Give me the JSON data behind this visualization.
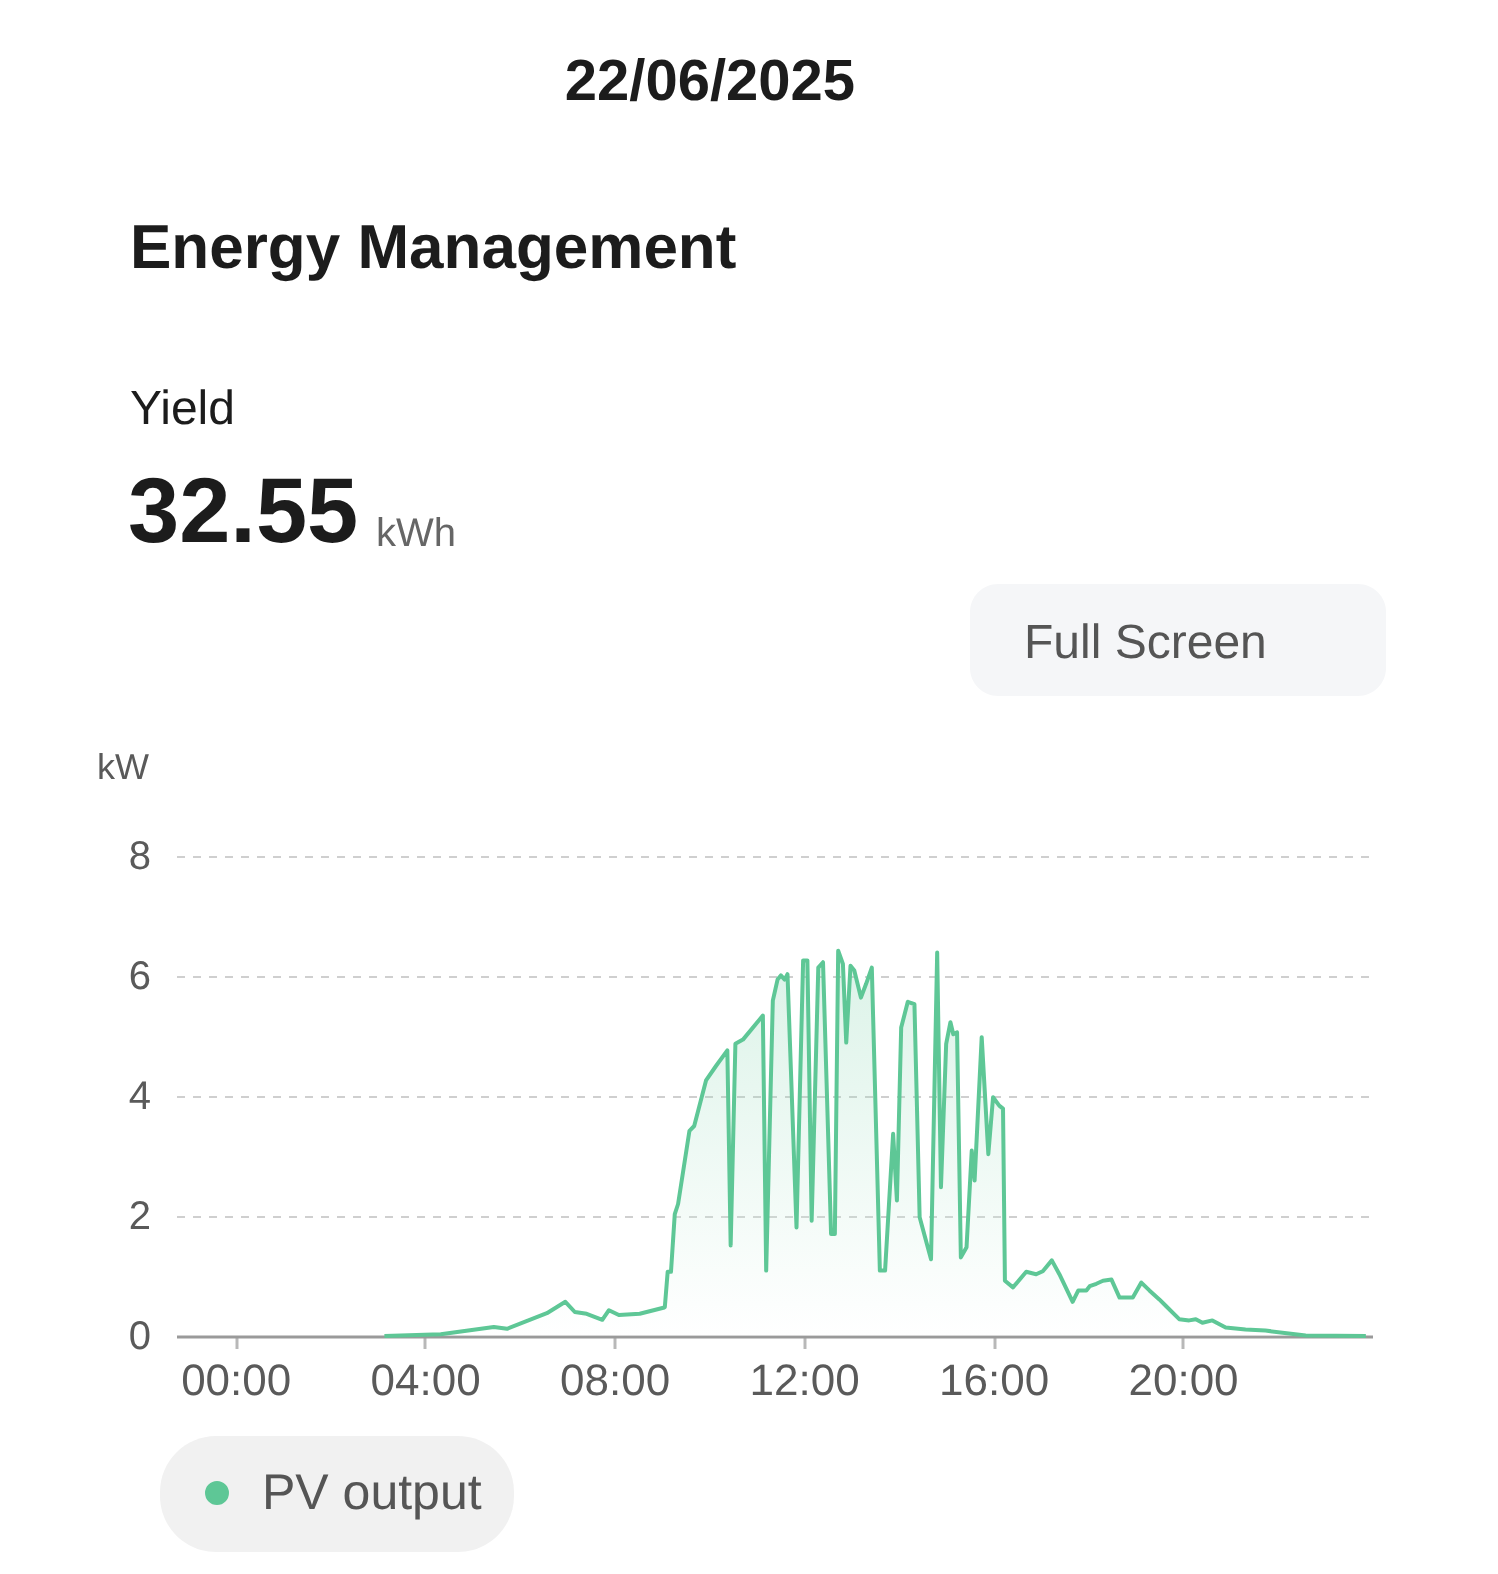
{
  "chart_data": {
    "type": "area",
    "title": "Energy Management",
    "annotations": [
      "22/06/2025",
      "Yield",
      "32.55",
      "kWh",
      "Full Screen"
    ],
    "ylabel": "kW",
    "x": [
      3.15,
      4.34,
      5.46,
      5.74,
      6.58,
      6.97,
      7.17,
      7.42,
      7.75,
      7.89,
      8.1,
      8.54,
      9.04,
      9.07,
      9.13,
      9.2,
      9.28,
      9.35,
      9.59,
      9.69,
      9.94,
      10.15,
      10.39,
      10.46,
      10.56,
      10.72,
      11.14,
      11.21,
      11.35,
      11.45,
      11.52,
      11.6,
      11.66,
      11.85,
      11.99,
      12.08,
      12.17,
      12.31,
      12.41,
      12.58,
      12.66,
      12.73,
      12.83,
      12.9,
      12.99,
      13.07,
      13.21,
      13.32,
      13.44,
      13.61,
      13.72,
      13.89,
      13.97,
      14.06,
      14.2,
      14.34,
      14.45,
      14.69,
      14.82,
      14.9,
      15.01,
      15.1,
      15.16,
      15.24,
      15.32,
      15.44,
      15.55,
      15.61,
      15.76,
      15.9,
      16.0,
      16.13,
      16.21,
      16.25,
      16.42,
      16.7,
      16.91,
      17.05,
      17.24,
      17.4,
      17.68,
      17.8,
      17.97,
      18.04,
      18.18,
      18.32,
      18.5,
      18.67,
      18.95,
      19.13,
      19.3,
      19.51,
      19.65,
      19.93,
      20.14,
      20.28,
      20.42,
      20.63,
      20.91,
      21.33,
      21.75,
      22.6,
      23.87
    ],
    "series": [
      {
        "name": "PV output",
        "color": "#5ec796",
        "values": [
          0,
          0.03,
          0.15,
          0.12,
          0.38,
          0.57,
          0.4,
          0.37,
          0.27,
          0.43,
          0.35,
          0.37,
          0.47,
          0.48,
          1.07,
          1.07,
          2.03,
          2.2,
          3.42,
          3.5,
          4.26,
          4.5,
          4.76,
          1.51,
          4.87,
          4.94,
          5.34,
          1.09,
          5.59,
          5.94,
          6.01,
          5.94,
          6.03,
          1.81,
          6.26,
          6.26,
          1.92,
          6.14,
          6.23,
          1.7,
          1.7,
          6.42,
          6.2,
          4.89,
          6.17,
          6.09,
          5.64,
          5.87,
          6.14,
          1.09,
          1.09,
          3.37,
          2.26,
          5.14,
          5.57,
          5.53,
          1.98,
          1.28,
          6.39,
          2.48,
          4.87,
          5.23,
          5.03,
          5.06,
          1.31,
          1.48,
          3.09,
          2.59,
          4.98,
          3.03,
          3.98,
          3.84,
          3.79,
          0.92,
          0.81,
          1.07,
          1.03,
          1.08,
          1.26,
          1.03,
          0.57,
          0.76,
          0.76,
          0.83,
          0.87,
          0.92,
          0.94,
          0.64,
          0.64,
          0.89,
          0.76,
          0.61,
          0.5,
          0.28,
          0.26,
          0.28,
          0.22,
          0.26,
          0.14,
          0.11,
          0.09,
          0.01,
          0
        ]
      }
    ],
    "xlim": [
      -1.25,
      24
    ],
    "xticks": [
      {
        "value": 0,
        "label": "00:00"
      },
      {
        "value": 4,
        "label": "04:00"
      },
      {
        "value": 8,
        "label": "08:00"
      },
      {
        "value": 12,
        "label": "12:00"
      },
      {
        "value": 16,
        "label": "16:00"
      },
      {
        "value": 20,
        "label": "20:00"
      }
    ],
    "ylim": [
      0,
      8
    ],
    "yticks": [
      0,
      2,
      4,
      6,
      8
    ],
    "grid": "y",
    "legend": "bottom left"
  }
}
